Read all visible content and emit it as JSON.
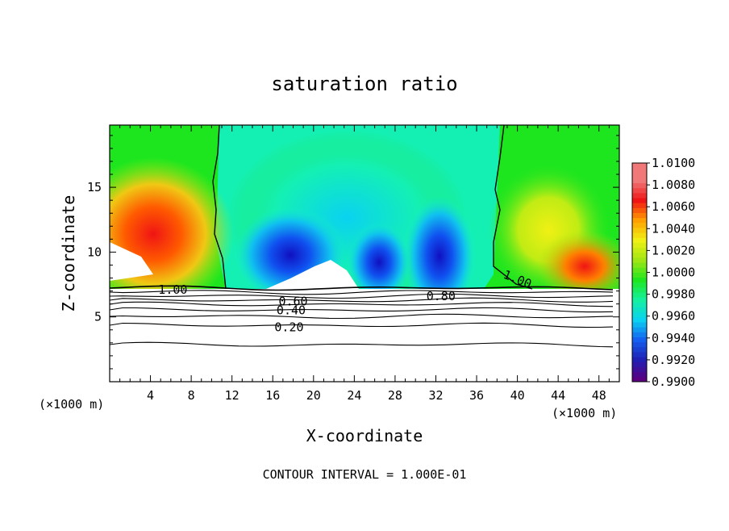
{
  "chart_data": {
    "type": "heatmap",
    "title": "saturation ratio",
    "xlabel": "X-coordinate",
    "ylabel": "Z-coordinate",
    "x_unit": "(×1000 m)",
    "x_ticks": [
      4,
      8,
      12,
      16,
      20,
      24,
      28,
      32,
      36,
      40,
      44,
      48
    ],
    "y_ticks": [
      5,
      10,
      15
    ],
    "xlim": [
      0,
      50
    ],
    "ylim": [
      0,
      19.8
    ],
    "colorbar": {
      "levels": [
        "0.9900",
        "0.9920",
        "0.9940",
        "0.9960",
        "0.9980",
        "1.0000",
        "1.0020",
        "1.0040",
        "1.0060",
        "1.0080",
        "1.0100"
      ],
      "colors": [
        "#5a0080",
        "#2020b4",
        "#1460f0",
        "#0ad2f0",
        "#14f0a0",
        "#1ee61e",
        "#a0e614",
        "#f0f014",
        "#ffa000",
        "#f01414",
        "#f07878"
      ]
    },
    "contour_labels": [
      {
        "text": "1.00",
        "x": 6.2,
        "y": 7.1
      },
      {
        "text": "1.00",
        "x": 40.0,
        "y": 7.9
      },
      {
        "text": "0.80",
        "x": 32.5,
        "y": 6.6
      },
      {
        "text": "0.60",
        "x": 18.0,
        "y": 6.2
      },
      {
        "text": "0.40",
        "x": 17.8,
        "y": 5.5
      },
      {
        "text": "0.20",
        "x": 17.6,
        "y": 4.2
      }
    ],
    "footer": "CONTOUR INTERVAL = 1.000E-01"
  }
}
